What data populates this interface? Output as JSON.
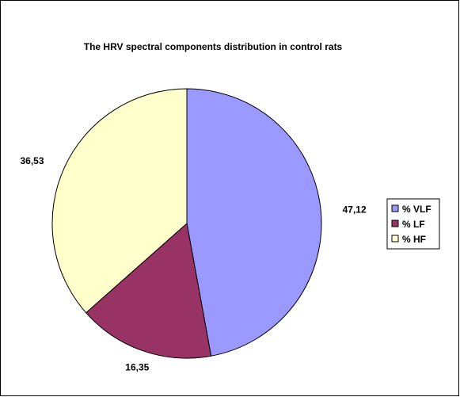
{
  "chart_data": {
    "type": "pie",
    "title": "The HRV spectral components distribution in control rats",
    "slices": [
      {
        "name": "% VLF",
        "value": 47.12,
        "label": "47,12",
        "color": "#9999ff"
      },
      {
        "name": "% LF",
        "value": 16.35,
        "label": "16,35",
        "color": "#993366"
      },
      {
        "name": "% HF",
        "value": 36.53,
        "label": "36,53",
        "color": "#ffffcc"
      }
    ],
    "legend_position": "right",
    "start": "top, clockwise"
  }
}
